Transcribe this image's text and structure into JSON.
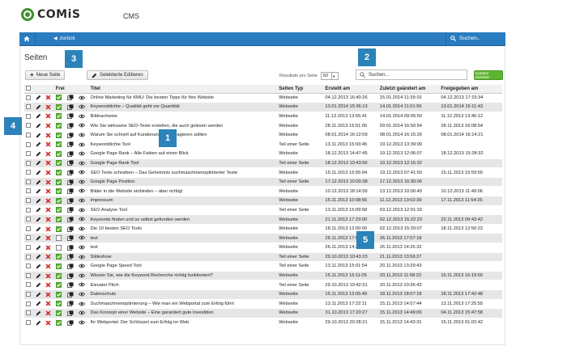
{
  "brand": {
    "logo_text": "COMiS",
    "section": "CMS"
  },
  "nav": {
    "back_label": "zurück",
    "search_label": "Suchen.."
  },
  "page": {
    "title": "Seiten"
  },
  "toolbar": {
    "new_label": "Neue Seite",
    "multi_edit_label": "Selektierte Editieren",
    "per_page_label": "Resultate pro Seite",
    "per_page_value": "50",
    "search_placeholder": "Suchen...",
    "update_label": "Updated zwischen"
  },
  "table": {
    "columns": [
      "",
      "",
      "",
      "Frei",
      "",
      "",
      "Titel",
      "Seiten Typ",
      "Erstellt am",
      "Zuletzt geändert am",
      "Freigegeben am"
    ],
    "rows": [
      {
        "frei": true,
        "title": "Online Marketing für KMU: Die besten Tipps für Ihre Website",
        "type": "Webseite",
        "created": "04.12.2013 16:40:26",
        "modified": "15.01.2014 11:39:16",
        "released": "04.12.2013 17:15:34"
      },
      {
        "frei": true,
        "title": "Keyworddichte – Qualität geht vor Quantität",
        "type": "Webseite",
        "created": "13.01.2014 15:36:13",
        "modified": "14.01.2014 11:01:56",
        "released": "13.01.2014 16:11:43"
      },
      {
        "frei": true,
        "title": "Bildnachweis",
        "type": "Webseite",
        "created": "11.12.2013 13:55:41",
        "modified": "14.01.2014 09:05:50",
        "released": "11.12.2013 13:46:12"
      },
      {
        "frei": true,
        "title": "Wie Sie wirksame SEO-Texte erstellen, die auch gelesen werden",
        "type": "Webseite",
        "created": "28.11.2013 15:51:05",
        "modified": "09.01.2014 16:50:54",
        "released": "28.11.2013 16:08:54"
      },
      {
        "frei": true,
        "title": "Warum Sie schnell auf Kundenanfragen reagieren sollten",
        "type": "Webseite",
        "created": "08.01.2014 16:12:09",
        "modified": "08.01.2014 16:15:26",
        "released": "08.01.2014 16:14:21"
      },
      {
        "frei": true,
        "title": "Keyworddichte Tool",
        "type": "Teil einer Seite",
        "created": "13.11.2013 15:03:45",
        "modified": "19.12.2013 13:39:09",
        "released": ""
      },
      {
        "frei": true,
        "title": "Google Page Rank – Alle Fakten auf einen Blick",
        "type": "Webseite",
        "created": "18.12.2013 14:47:45",
        "modified": "19.12.2013 12:06:07",
        "released": "18.12.2013 15:28:32"
      },
      {
        "frei": true,
        "title": "Google Page Rank Tool",
        "type": "Teil einer Seite",
        "created": "18.12.2013 10:43:56",
        "modified": "19.12.2013 12:15:32",
        "released": ""
      },
      {
        "frei": true,
        "title": "SEO Texte schreiben – Das Geheimnis suchmaschinenoptimierter Texte",
        "type": "Webseite",
        "created": "15.11.2013 15:55:04",
        "modified": "19.12.2013 07:41:50",
        "released": "15.11.2013 15:59:55"
      },
      {
        "frei": true,
        "title": "Google Page Position",
        "type": "Teil einer Seite",
        "created": "17.12.2013 10:00:38",
        "modified": "17.12.2013 16:30:06",
        "released": ""
      },
      {
        "frei": true,
        "title": "Bilder in die Website einbinden – aber richtig!",
        "type": "Webseite",
        "created": "10.12.2013 18:14:56",
        "modified": "13.12.2013 10:00:40",
        "released": "10.12.2013 11:49:06"
      },
      {
        "frei": true,
        "title": "Impressum",
        "type": "Webseite",
        "created": "15.11.2013 10:08:56",
        "modified": "11.12.2013 13:02:39",
        "released": "17.11.2013 11:54:26"
      },
      {
        "frei": true,
        "title": "SEO Analyse Tool",
        "type": "Teil einer Seite",
        "created": "13.11.2013 15:09:58",
        "modified": "03.12.2013 12:01:33",
        "released": ""
      },
      {
        "frei": true,
        "title": "Keywords finden und so selbst gefunden werden",
        "type": "Webseite",
        "created": "21.11.2013 17:23:00",
        "modified": "02.12.2013 15:22:23",
        "released": "22.11.2013 09:43:42"
      },
      {
        "frei": true,
        "title": "Die 10 besten SEO Tools",
        "type": "Webseite",
        "created": "18.11.2013 12:00:00",
        "modified": "02.12.2013 15:20:07",
        "released": "18.11.2013 12:50:22"
      },
      {
        "frei": false,
        "title": "test",
        "type": "Webseite",
        "created": "26.11.2013 17:07:02",
        "modified": "26.11.2013 17:07:18",
        "released": ""
      },
      {
        "frei": false,
        "title": "test",
        "type": "Webseite",
        "created": "26.11.2013 14:26:32",
        "modified": "26.11.2013 14:26:32",
        "released": ""
      },
      {
        "frei": true,
        "title": "Slideshow",
        "type": "Teil einer Seite",
        "created": "29.10.2013 10:43:23",
        "modified": "21.11.2013 13:56:27",
        "released": ""
      },
      {
        "frei": true,
        "title": "Google Page Speed Tool",
        "type": "Teil einer Seite",
        "created": "13.11.2013 15:01:54",
        "modified": "20.11.2013 13:29:43",
        "released": ""
      },
      {
        "frei": true,
        "title": "Wissen Sie, wie die Keyword Recherche richtig funktioniert?",
        "type": "Webseite",
        "created": "15.11.2013 16:11:05",
        "modified": "20.11.2013 11:58:22",
        "released": "15.11.2013 16:19:55"
      },
      {
        "frei": true,
        "title": "Elevator Pitch",
        "type": "Teil einer Seite",
        "created": "29.10.2013 10:42:31",
        "modified": "20.11.2013 10:36:43",
        "released": ""
      },
      {
        "frei": true,
        "title": "Datenschutz",
        "type": "Webseite",
        "created": "15.11.2013 13:05:49",
        "modified": "18.11.2013 18:07:18",
        "released": "18.11.2013 17:42:48"
      },
      {
        "frei": true,
        "title": "Suchmaschinenoptimierung – Wie man ein Webportal zum Erfolg führt",
        "type": "Webseite",
        "created": "13.11.2013 17:22:11",
        "modified": "15.11.2013 14:57:44",
        "released": "13.11.2013 17:25:55"
      },
      {
        "frei": true,
        "title": "Das Konzept einer Website – Eine garantiert gute Investition",
        "type": "Webseite",
        "created": "31.10.2013 17:20:27",
        "modified": "15.11.2013 14:49:09",
        "released": "04.11.2013 15:47:58"
      },
      {
        "frei": true,
        "title": "Ihr Webportal: Der Schlüssel zum Erfolg im Web",
        "type": "Webseite",
        "created": "29.10.2013 20:28:21",
        "modified": "15.11.2013 14:43:31",
        "released": "15.11.2013 01:02:42"
      }
    ]
  },
  "badges": [
    "1",
    "2",
    "3",
    "4",
    "5"
  ],
  "colors": {
    "nav": "#2a7cc0",
    "accent_green": "#5cb531",
    "badge": "#2b83b9",
    "delete_red": "#d9262c"
  }
}
